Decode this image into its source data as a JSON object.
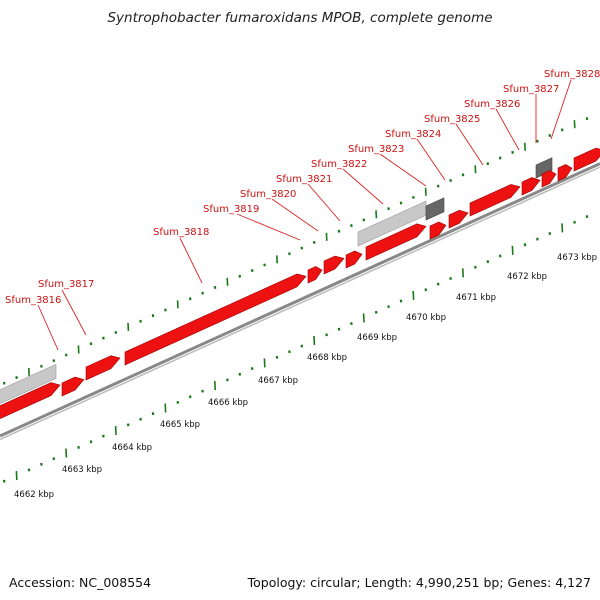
{
  "title": "Syntrophobacter fumaroxidans MPOB, complete genome",
  "footer": {
    "accession": "Accession: NC_008554",
    "summary": "Topology: circular; Length: 4,990,251 bp; Genes: 4,127"
  },
  "colors": {
    "gene_forward": "#ee1111",
    "gene_forward_dark": "#990000",
    "other_feature_light": "#c8c8c8",
    "other_feature_dark": "#666666",
    "backbone": "#888888",
    "tick_green": "#1a7a1a",
    "label_red": "#cc1111"
  },
  "scale": {
    "unit": "kbp",
    "labels": [
      "4662 kbp",
      "4663 kbp",
      "4664 kbp",
      "4665 kbp",
      "4666 kbp",
      "4667 kbp",
      "4668 kbp",
      "4669 kbp",
      "4670 kbp",
      "4671 kbp",
      "4672 kbp",
      "4673 kbp"
    ]
  },
  "genes": [
    {
      "label": "Sfum_3816"
    },
    {
      "label": "Sfum_3817"
    },
    {
      "label": "Sfum_3818"
    },
    {
      "label": "Sfum_3819"
    },
    {
      "label": "Sfum_3820"
    },
    {
      "label": "Sfum_3821"
    },
    {
      "label": "Sfum_3822"
    },
    {
      "label": "Sfum_3823"
    },
    {
      "label": "Sfum_3824"
    },
    {
      "label": "Sfum_3825"
    },
    {
      "label": "Sfum_3826"
    },
    {
      "label": "Sfum_3827"
    },
    {
      "label": "Sfum_3828"
    }
  ]
}
